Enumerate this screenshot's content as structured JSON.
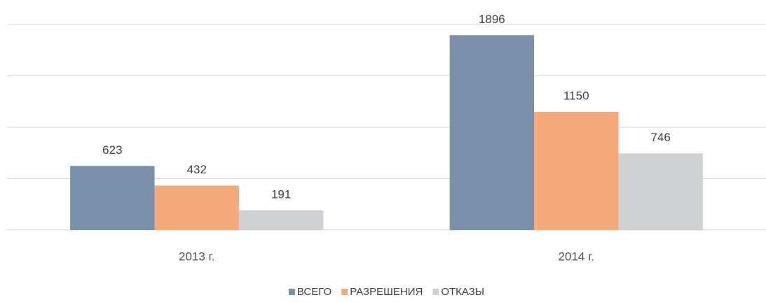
{
  "chart_data": {
    "type": "bar",
    "categories": [
      "2013 г.",
      "2014 г."
    ],
    "series": [
      {
        "name": "ВСЕГО",
        "color": "#7b90aa",
        "values": [
          623,
          1896
        ]
      },
      {
        "name": "РАЗРЕШЕНИЯ",
        "color": "#f5aa7b",
        "values": [
          432,
          1150
        ]
      },
      {
        "name": "ОТКАЗЫ",
        "color": "#d0d1d3",
        "values": [
          191,
          746
        ]
      }
    ],
    "ylim": [
      0,
      2000
    ],
    "yticks": [
      0,
      500,
      1000,
      1500,
      2000
    ],
    "grid": true,
    "legend": "bottom"
  }
}
